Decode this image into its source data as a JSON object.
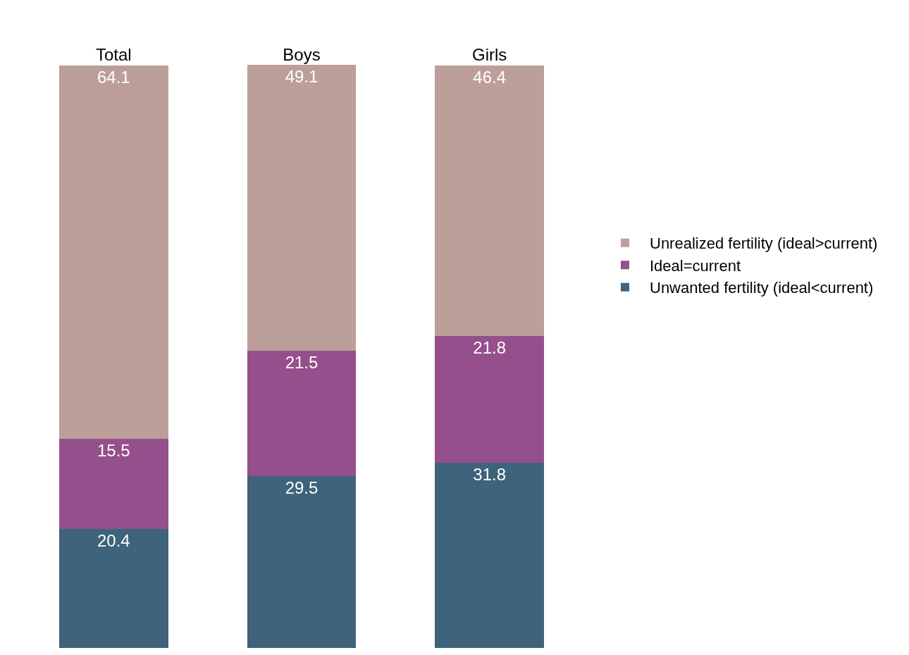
{
  "chart_data": {
    "type": "bar",
    "stacked": true,
    "data_labels": true,
    "legend": "right",
    "categories": [
      "Total",
      "Boys",
      "Girls"
    ],
    "series": [
      {
        "name": "Unwanted fertility (ideal<current)",
        "color": "#3e637b",
        "values": [
          20.4,
          29.5,
          31.8
        ]
      },
      {
        "name": "Ideal=current",
        "color": "#954f8c",
        "values": [
          15.5,
          21.5,
          21.8
        ]
      },
      {
        "name": "Unrealized fertility (ideal>current)",
        "color": "#bc9f99",
        "values": [
          64.1,
          49.1,
          46.4
        ]
      }
    ]
  }
}
